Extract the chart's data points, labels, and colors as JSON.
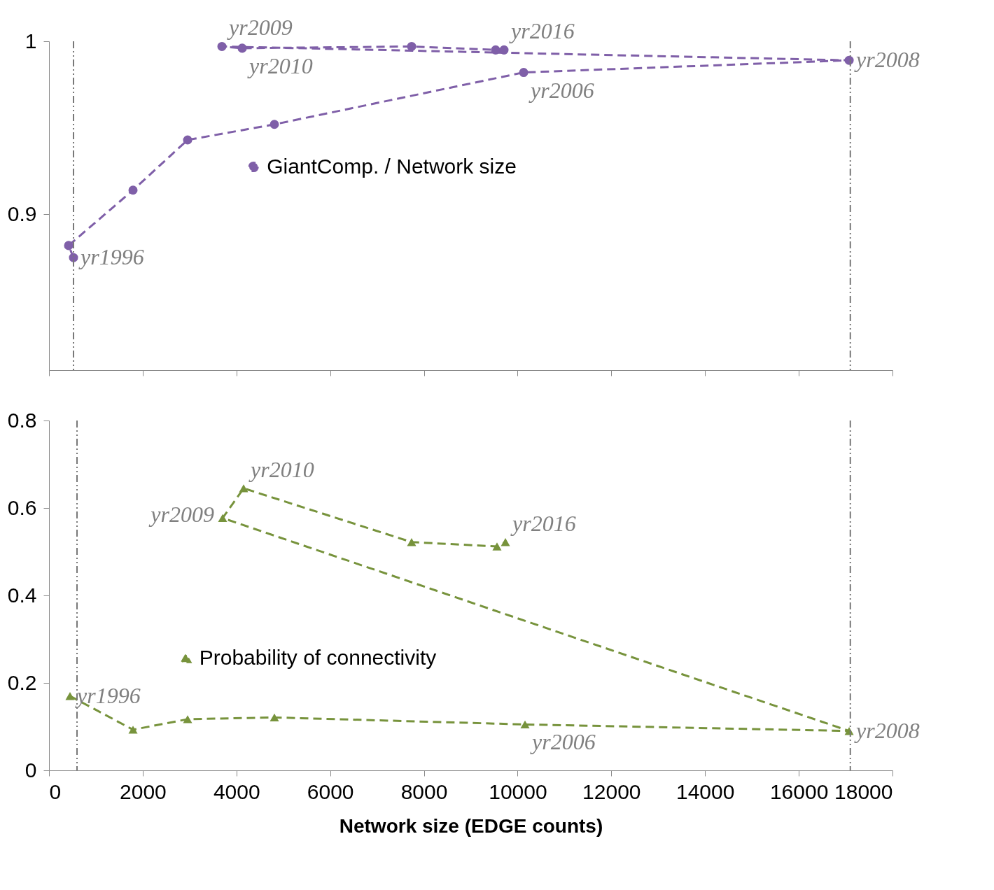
{
  "chart_data": [
    {
      "type": "line",
      "xlim": [
        0,
        18000
      ],
      "xticks": [
        0,
        2000,
        4000,
        6000,
        8000,
        10000,
        12000,
        14000,
        16000,
        18000
      ],
      "ylim": [
        0.81,
        1
      ],
      "yticks": [
        0.9,
        1
      ],
      "tick_labels": "y",
      "legend": "center left",
      "marker": "circle",
      "line_style": "dashed",
      "series": [
        {
          "name": "GiantComp. / Network size",
          "color": "#7f5fa8",
          "x": [
            523,
            418,
            1793,
            2958,
            4810,
            10129,
            17075,
            3690,
            4123,
            7738,
            9531,
            9710
          ],
          "values": [
            0.875,
            0.882,
            0.914,
            0.943,
            0.952,
            0.982,
            0.989,
            0.997,
            0.996,
            0.997,
            0.995,
            0.995
          ]
        }
      ],
      "ref_lines": [
        {
          "axis": "x",
          "value": 523
        },
        {
          "axis": "x",
          "value": 17100
        }
      ],
      "annotations": [
        {
          "text": "yr2009",
          "x": 3690,
          "y": 0.997
        },
        {
          "text": "yr2010",
          "x": 4123,
          "y": 0.996
        },
        {
          "text": "yr2016",
          "x": 9710,
          "y": 0.995
        },
        {
          "text": "yr2006",
          "x": 10129,
          "y": 0.982
        },
        {
          "text": "yr2008",
          "x": 17075,
          "y": 0.989
        },
        {
          "text": "yr1996",
          "x": 523,
          "y": 0.875
        }
      ]
    },
    {
      "type": "line",
      "xlabel": "Network size (EDGE counts)",
      "xlim": [
        0,
        18000
      ],
      "xticks": [
        0,
        2000,
        4000,
        6000,
        8000,
        10000,
        12000,
        14000,
        16000,
        18000
      ],
      "ylim": [
        0,
        0.8
      ],
      "yticks": [
        0,
        0.2,
        0.4,
        0.6,
        0.8
      ],
      "legend": "left",
      "marker": "triangle",
      "line_style": "dashed",
      "series": [
        {
          "name": "Probability of connectivity",
          "color": "#77933c",
          "x": [
            448,
            1793,
            2958,
            4810,
            10158,
            17075,
            3705,
            4153,
            7738,
            9560,
            9740
          ],
          "values": [
            0.17,
            0.093,
            0.117,
            0.121,
            0.105,
            0.09,
            0.577,
            0.645,
            0.522,
            0.512,
            0.522
          ]
        }
      ],
      "ref_lines": [
        {
          "axis": "x",
          "value": 598
        },
        {
          "axis": "x",
          "value": 17100
        }
      ],
      "annotations": [
        {
          "text": "yr2009",
          "x": 3705,
          "y": 0.577
        },
        {
          "text": "yr2010",
          "x": 4153,
          "y": 0.645
        },
        {
          "text": "yr2016",
          "x": 9740,
          "y": 0.522
        },
        {
          "text": "yr2006",
          "x": 10158,
          "y": 0.105
        },
        {
          "text": "yr2008",
          "x": 17075,
          "y": 0.09
        },
        {
          "text": "yr1996",
          "x": 448,
          "y": 0.17
        }
      ]
    }
  ]
}
